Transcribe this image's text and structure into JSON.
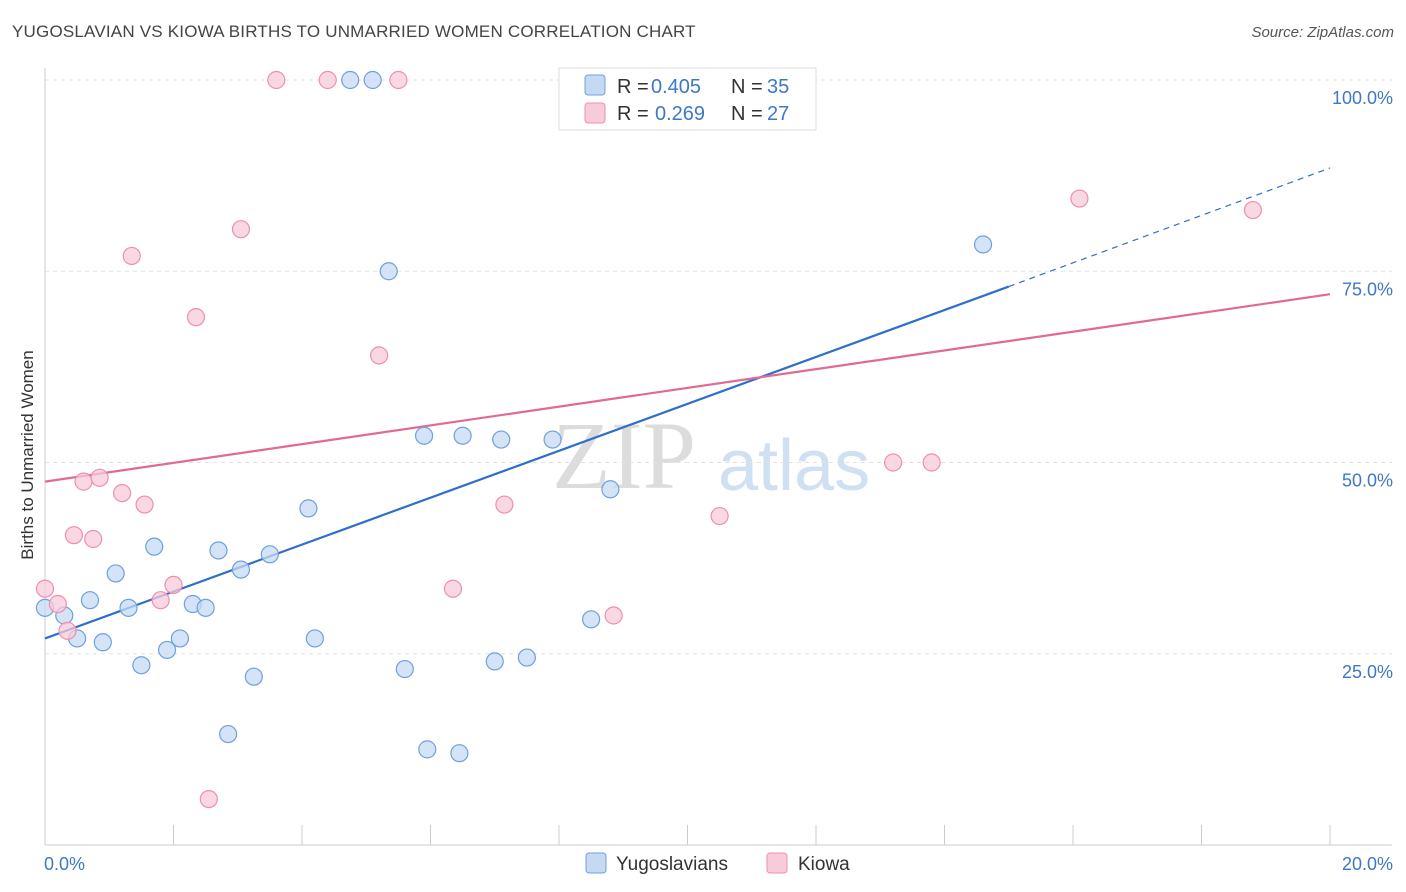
{
  "title": "YUGOSLAVIAN VS KIOWA BIRTHS TO UNMARRIED WOMEN CORRELATION CHART",
  "source": "Source: ZipAtlas.com",
  "watermark": {
    "zip": "ZIP",
    "atlas": "atlas"
  },
  "colors": {
    "blue": "#6fa0de",
    "blue_fill": "#c5d9f3",
    "blue_line": "#2e6fcc",
    "pink": "#ee8fae",
    "pink_fill": "#f8cbda",
    "pink_line": "#e06a93",
    "tick": "#3d78c6"
  },
  "legend": {
    "rows": [
      {
        "r_label": "R =",
        "r_value": "0.405",
        "n_label": "N =",
        "n_value": "35"
      },
      {
        "r_label": "R =",
        "r_value": "0.269",
        "n_label": "N =",
        "n_value": "27"
      }
    ]
  },
  "chart_data": {
    "type": "scatter",
    "title": "YUGOSLAVIAN VS KIOWA BIRTHS TO UNMARRIED WOMEN CORRELATION CHART",
    "xlabel": "",
    "ylabel": "Births to Unmarried Women",
    "xlim": [
      0,
      20
    ],
    "ylim": [
      0,
      102
    ],
    "x_tick_labels": [
      "0.0%",
      "20.0%"
    ],
    "y_ticks": [
      25,
      50,
      75,
      100
    ],
    "y_tick_labels": [
      "25.0%",
      "50.0%",
      "75.0%",
      "100.0%"
    ],
    "grid": true,
    "series": [
      {
        "name": "Yugoslavians",
        "r": 0.405,
        "n": 35,
        "trend": {
          "x0": 0,
          "y0": 27.0,
          "x1": 15.0,
          "y1": 73.0,
          "dashed_to_x": 20,
          "dashed_to_y": 88.5
        },
        "points": [
          [
            0.0,
            31.0
          ],
          [
            0.3,
            30.0
          ],
          [
            0.5,
            27.0
          ],
          [
            0.7,
            32.0
          ],
          [
            0.9,
            26.5
          ],
          [
            1.1,
            35.5
          ],
          [
            1.3,
            31.0
          ],
          [
            1.5,
            23.5
          ],
          [
            1.7,
            39.0
          ],
          [
            1.9,
            25.5
          ],
          [
            2.1,
            27.0
          ],
          [
            2.3,
            31.5
          ],
          [
            2.5,
            31.0
          ],
          [
            2.7,
            38.5
          ],
          [
            2.85,
            14.5
          ],
          [
            3.05,
            36.0
          ],
          [
            3.25,
            22.0
          ],
          [
            3.5,
            38.0
          ],
          [
            4.1,
            44.0
          ],
          [
            4.2,
            27.0
          ],
          [
            4.75,
            100.0
          ],
          [
            5.1,
            100.0
          ],
          [
            5.35,
            75.0
          ],
          [
            5.6,
            23.0
          ],
          [
            5.95,
            12.5
          ],
          [
            5.9,
            53.5
          ],
          [
            6.5,
            53.5
          ],
          [
            6.45,
            12.0
          ],
          [
            7.0,
            24.0
          ],
          [
            7.1,
            53.0
          ],
          [
            7.5,
            24.5
          ],
          [
            7.9,
            53.0
          ],
          [
            8.5,
            29.5
          ],
          [
            8.8,
            46.5
          ],
          [
            14.6,
            78.5
          ]
        ]
      },
      {
        "name": "Kiowa",
        "r": 0.269,
        "n": 27,
        "trend": {
          "x0": 0,
          "y0": 47.5,
          "x1": 20,
          "y1": 72.0
        },
        "points": [
          [
            0.0,
            33.5
          ],
          [
            0.2,
            31.5
          ],
          [
            0.35,
            28.0
          ],
          [
            0.45,
            40.5
          ],
          [
            0.6,
            47.5
          ],
          [
            0.75,
            40.0
          ],
          [
            0.85,
            48.0
          ],
          [
            1.2,
            46.0
          ],
          [
            1.35,
            77.0
          ],
          [
            1.55,
            44.5
          ],
          [
            1.8,
            32.0
          ],
          [
            2.0,
            34.0
          ],
          [
            2.35,
            69.0
          ],
          [
            2.55,
            6.0
          ],
          [
            3.05,
            80.5
          ],
          [
            3.6,
            100.0
          ],
          [
            4.4,
            100.0
          ],
          [
            5.2,
            64.0
          ],
          [
            5.5,
            100.0
          ],
          [
            6.35,
            33.5
          ],
          [
            7.15,
            44.5
          ],
          [
            8.85,
            30.0
          ],
          [
            10.5,
            43.0
          ],
          [
            13.2,
            50.0
          ],
          [
            13.8,
            50.0
          ],
          [
            16.1,
            84.5
          ],
          [
            18.8,
            83.0
          ]
        ]
      }
    ]
  }
}
